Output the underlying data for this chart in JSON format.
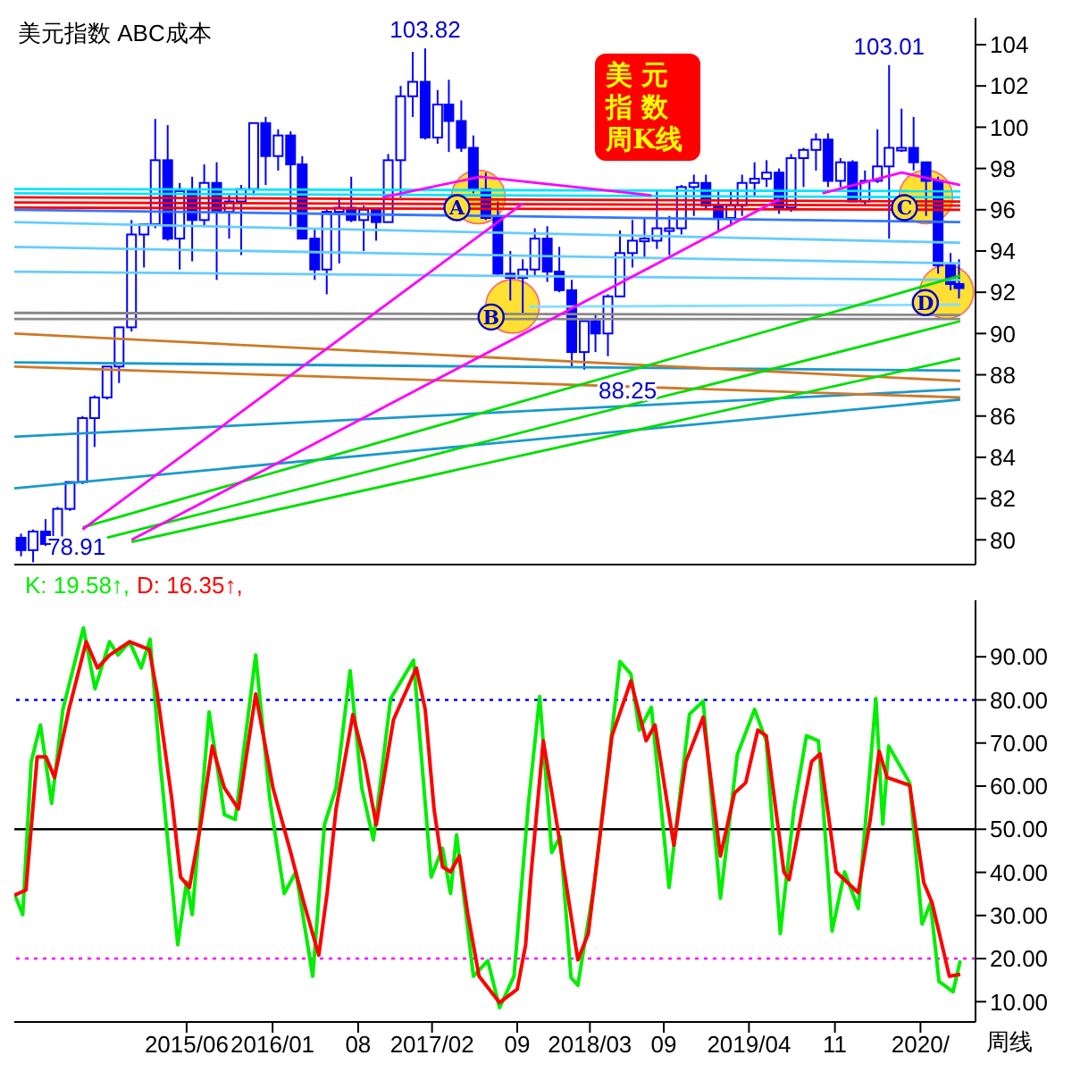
{
  "chart_data": [
    {
      "type": "candlestick",
      "title": "美元指数 ABC成本",
      "color": "#0000ff",
      "marker": "none",
      "line_style": "solid",
      "x": [
        "2014-04-15",
        "2014-05-15",
        "2014-06-15",
        "2014-07-15",
        "2014-08-15",
        "2014-09-15",
        "2014-10-15",
        "2014-11-15",
        "2014-12-15",
        "2015-01-15",
        "2015-02-15",
        "2015-03-15",
        "2015-04-15",
        "2015-05-15",
        "2015-06-15",
        "2015-07-15",
        "2015-08-15",
        "2015-09-15",
        "2015-10-15",
        "2015-11-15",
        "2015-12-15",
        "2016-01-15",
        "2016-02-15",
        "2016-03-15",
        "2016-04-15",
        "2016-05-15",
        "2016-06-15",
        "2016-07-15",
        "2016-08-15",
        "2016-09-15",
        "2016-10-15",
        "2016-11-15",
        "2016-12-15",
        "2017-01-15",
        "2017-02-15",
        "2017-03-15",
        "2017-04-15",
        "2017-05-15",
        "2017-06-15",
        "2017-07-15",
        "2017-08-15",
        "2017-09-15",
        "2017-10-15",
        "2017-11-15",
        "2017-12-15",
        "2018-01-15",
        "2018-02-15",
        "2018-03-15",
        "2018-04-15",
        "2018-05-15",
        "2018-06-15",
        "2018-07-15",
        "2018-08-15",
        "2018-09-15",
        "2018-10-15",
        "2018-11-15",
        "2018-12-15",
        "2019-01-15",
        "2019-02-15",
        "2019-03-15",
        "2019-04-15",
        "2019-05-15",
        "2019-06-15",
        "2019-07-15",
        "2019-08-15",
        "2019-09-15",
        "2019-10-15",
        "2019-11-15",
        "2019-12-15",
        "2020-01-15",
        "2020-02-15",
        "2020-03-15",
        "2020-04-15",
        "2020-05-15",
        "2020-06-15",
        "2020-07-15",
        "2020-08-15",
        "2020-09-05"
      ],
      "ohlc": [
        [
          80.1,
          80.3,
          79.2,
          79.5
        ],
        [
          79.5,
          80.5,
          78.91,
          80.4
        ],
        [
          80.4,
          81.0,
          79.7,
          79.8
        ],
        [
          79.8,
          81.6,
          79.8,
          81.5
        ],
        [
          81.5,
          82.8,
          81.4,
          82.8
        ],
        [
          82.8,
          86.0,
          82.7,
          85.9
        ],
        [
          85.9,
          87.0,
          84.5,
          86.9
        ],
        [
          86.9,
          88.4,
          86.8,
          88.4
        ],
        [
          88.4,
          90.3,
          87.6,
          90.3
        ],
        [
          90.3,
          95.5,
          90.1,
          94.8
        ],
        [
          94.8,
          95.3,
          93.2,
          95.3
        ],
        [
          95.3,
          100.4,
          95.1,
          98.4
        ],
        [
          98.4,
          100.1,
          94.5,
          94.6
        ],
        [
          94.6,
          97.3,
          93.1,
          96.9
        ],
        [
          96.9,
          97.6,
          93.5,
          95.5
        ],
        [
          95.5,
          98.2,
          95.2,
          97.3
        ],
        [
          97.3,
          98.3,
          92.6,
          95.9
        ],
        [
          95.9,
          96.8,
          94.6,
          96.4
        ],
        [
          96.4,
          97.2,
          93.8,
          97.0
        ],
        [
          97.0,
          100.2,
          96.7,
          100.2
        ],
        [
          100.2,
          100.5,
          97.2,
          98.6
        ],
        [
          98.6,
          99.9,
          97.9,
          99.6
        ],
        [
          99.6,
          99.8,
          95.2,
          98.2
        ],
        [
          98.2,
          98.6,
          94.6,
          94.6
        ],
        [
          94.6,
          95.1,
          92.6,
          93.1
        ],
        [
          93.1,
          96.0,
          91.9,
          95.9
        ],
        [
          95.9,
          96.6,
          93.4,
          96.1
        ],
        [
          96.1,
          97.6,
          95.4,
          95.5
        ],
        [
          95.5,
          96.2,
          94.0,
          96.0
        ],
        [
          96.0,
          96.0,
          94.5,
          95.4
        ],
        [
          95.4,
          98.7,
          95.4,
          98.4
        ],
        [
          98.4,
          102.0,
          96.6,
          101.5
        ],
        [
          101.5,
          103.65,
          100.5,
          102.2
        ],
        [
          102.2,
          103.82,
          99.4,
          99.5
        ],
        [
          99.5,
          101.8,
          99.2,
          101.1
        ],
        [
          101.1,
          102.3,
          98.8,
          100.3
        ],
        [
          100.3,
          101.3,
          98.8,
          99.0
        ],
        [
          99.0,
          99.6,
          96.8,
          97.0
        ],
        [
          97.0,
          97.8,
          95.5,
          95.6
        ],
        [
          95.6,
          96.4,
          92.8,
          92.9
        ],
        [
          92.9,
          94.0,
          91.6,
          92.7
        ],
        [
          92.7,
          93.6,
          91.0,
          93.1
        ],
        [
          93.1,
          95.1,
          92.8,
          94.6
        ],
        [
          94.6,
          95.2,
          92.5,
          93.0
        ],
        [
          93.0,
          94.2,
          92.0,
          92.1
        ],
        [
          92.1,
          92.6,
          88.4,
          89.1
        ],
        [
          89.1,
          90.6,
          88.25,
          90.6
        ],
        [
          90.6,
          90.9,
          89.1,
          90.0
        ],
        [
          90.0,
          91.9,
          88.9,
          91.8
        ],
        [
          91.8,
          95.0,
          91.8,
          93.9
        ],
        [
          93.9,
          95.5,
          93.2,
          94.5
        ],
        [
          94.5,
          95.6,
          93.7,
          94.6
        ],
        [
          94.5,
          96.9,
          94.1,
          95.1
        ],
        [
          95.1,
          95.7,
          93.8,
          95.1
        ],
        [
          95.1,
          97.2,
          94.8,
          97.1
        ],
        [
          97.1,
          97.7,
          95.7,
          97.3
        ],
        [
          97.3,
          97.7,
          96.0,
          96.2
        ],
        [
          96.2,
          96.9,
          95.0,
          95.6
        ],
        [
          95.6,
          96.9,
          95.2,
          96.2
        ],
        [
          96.2,
          97.7,
          95.7,
          97.3
        ],
        [
          97.3,
          98.3,
          96.6,
          97.5
        ],
        [
          97.5,
          98.4,
          97.1,
          97.8
        ],
        [
          97.8,
          98.0,
          95.8,
          96.1
        ],
        [
          96.1,
          98.7,
          95.9,
          98.5
        ],
        [
          98.5,
          99.0,
          97.1,
          98.9
        ],
        [
          98.9,
          99.7,
          97.9,
          99.4
        ],
        [
          99.4,
          99.7,
          97.1,
          97.4
        ],
        [
          97.4,
          98.5,
          97.1,
          98.3
        ],
        [
          98.3,
          98.4,
          96.4,
          96.4
        ],
        [
          96.4,
          97.9,
          96.2,
          97.4
        ],
        [
          97.4,
          99.9,
          97.3,
          98.1
        ],
        [
          98.1,
          103.01,
          94.6,
          99.0
        ],
        [
          99.0,
          100.9,
          98.8,
          99.0
        ],
        [
          99.0,
          100.5,
          97.9,
          98.3
        ],
        [
          98.3,
          98.3,
          95.7,
          97.4
        ],
        [
          97.4,
          97.6,
          92.9,
          93.3
        ],
        [
          93.3,
          93.9,
          92.1,
          92.4
        ],
        [
          92.4,
          93.6,
          91.7,
          92.2
        ]
      ],
      "series": [
        {
          "type": "line",
          "color": "#ff0000",
          "x": [
            "2014-03-29",
            "2020-09-08"
          ],
          "values": [
            96.6,
            96.4
          ]
        },
        {
          "type": "line",
          "color": "#ff0000",
          "x": [
            "2014-03-29",
            "2020-09-08"
          ],
          "values": [
            96.35,
            96.2
          ]
        },
        {
          "type": "line",
          "color": "#ff0000",
          "x": [
            "2014-03-29",
            "2020-09-08"
          ],
          "values": [
            96.1,
            96.0
          ]
        },
        {
          "type": "line",
          "color": "#00e5ff",
          "x": [
            "2014-03-29",
            "2020-09-08"
          ],
          "values": [
            97.0,
            96.9
          ]
        },
        {
          "type": "line",
          "color": "#00e5ff",
          "x": [
            "2014-03-29",
            "2020-09-08"
          ],
          "values": [
            96.8,
            96.6
          ]
        },
        {
          "type": "line",
          "color": "#3377ff",
          "x": [
            "2014-03-29",
            "2020-09-08"
          ],
          "values": [
            96.0,
            95.4
          ]
        },
        {
          "type": "line",
          "color": "#888888",
          "x": [
            "2014-03-29",
            "2020-09-08"
          ],
          "values": [
            91.0,
            90.9
          ]
        },
        {
          "type": "line",
          "color": "#888888",
          "x": [
            "2014-03-29",
            "2020-09-08"
          ],
          "values": [
            90.7,
            90.7
          ]
        },
        {
          "type": "line",
          "color": "#88ddff",
          "x": [
            "2017-10-01",
            "2020-09-08"
          ],
          "values": [
            91.3,
            91.4
          ]
        },
        {
          "type": "line",
          "color": "#66ccff",
          "x": [
            "2014-03-29",
            "2020-09-08"
          ],
          "values": [
            95.4,
            94.4
          ]
        },
        {
          "type": "line",
          "color": "#66ccff",
          "x": [
            "2014-03-29",
            "2020-09-08"
          ],
          "values": [
            94.2,
            93.4
          ]
        },
        {
          "type": "line",
          "color": "#66ccff",
          "x": [
            "2014-03-29",
            "2020-09-08"
          ],
          "values": [
            93.0,
            92.6
          ]
        },
        {
          "type": "line",
          "color": "#1a99cc",
          "x": [
            "2014-03-29",
            "2020-09-08"
          ],
          "values": [
            88.6,
            88.2
          ]
        },
        {
          "type": "line",
          "color": "#1a99cc",
          "x": [
            "2014-03-29",
            "2020-09-08"
          ],
          "values": [
            85.0,
            87.3
          ]
        },
        {
          "type": "line",
          "color": "#1a99cc",
          "x": [
            "2014-03-29",
            "2020-09-08"
          ],
          "values": [
            82.5,
            86.8
          ]
        },
        {
          "type": "line",
          "color": "#cc7a29",
          "x": [
            "2014-03-29",
            "2020-09-08"
          ],
          "values": [
            90.0,
            87.7
          ]
        },
        {
          "type": "line",
          "color": "#cc7a29",
          "x": [
            "2014-03-29",
            "2020-09-08"
          ],
          "values": [
            88.4,
            86.9
          ]
        },
        {
          "type": "line",
          "color": "#00dd00",
          "x": [
            "2014-09-15",
            "2020-09-08"
          ],
          "values": [
            80.6,
            92.8
          ]
        },
        {
          "type": "line",
          "color": "#00dd00",
          "x": [
            "2014-11-15",
            "2020-09-08"
          ],
          "values": [
            80.1,
            90.6
          ]
        },
        {
          "type": "line",
          "color": "#00dd00",
          "x": [
            "2015-01-15",
            "2020-09-08"
          ],
          "values": [
            79.9,
            88.8
          ]
        },
        {
          "type": "line",
          "color": "#ff00ff",
          "x": [
            "2014-09-15",
            "2017-09-15"
          ],
          "values": [
            80.5,
            96.3
          ]
        },
        {
          "type": "line",
          "color": "#ff00ff",
          "x": [
            "2015-01-15",
            "2019-06-15"
          ],
          "values": [
            80.0,
            96.5
          ]
        },
        {
          "type": "line",
          "color": "#ff00ff",
          "x": [
            "2016-10-01",
            "2017-06-01",
            "2018-08-01"
          ],
          "values": [
            96.6,
            97.6,
            96.7
          ]
        },
        {
          "type": "line",
          "color": "#ff00ff",
          "x": [
            "2019-10-01",
            "2020-04-15",
            "2020-09-08"
          ],
          "values": [
            96.8,
            97.8,
            97.2
          ]
        }
      ],
      "xlim": [
        "2014-03-29",
        "2020-10-16"
      ],
      "ylim": [
        78.8,
        105.3
      ],
      "yticks": [
        80,
        82,
        84,
        86,
        88,
        90,
        92,
        94,
        96,
        98,
        100,
        102,
        104
      ],
      "tick_labels": "y",
      "annotations": [
        {
          "text": "103.82",
          "x": "2017-01-15",
          "y": 103.82
        },
        {
          "text": "103.01",
          "x": "2020-03-15",
          "y": 103.01
        },
        {
          "text": "88.25",
          "x": "2018-02-15",
          "y": 88.25
        },
        {
          "text": "78.91",
          "x": "2014-05-15",
          "y": 78.91
        },
        {
          "text": "A",
          "x": "2017-04-04",
          "y": 96.1
        },
        {
          "text": "B",
          "x": "2017-06-28",
          "y": 90.8
        },
        {
          "text": "C",
          "x": "2020-04-22",
          "y": 96.1
        },
        {
          "text": "D",
          "x": "2020-06-13",
          "y": 91.5
        },
        "美 元指 数周K线"
      ]
    },
    {
      "type": "line",
      "xlabel": "周线",
      "legend": "top left",
      "marker": "none",
      "line_style": "solid",
      "series": [
        {
          "name": "K: 19.58↑,",
          "color": "#00ee00",
          "x": [
            "2014-03-29",
            "2014-04-19",
            "2014-05-10",
            "2014-06-02",
            "2014-06-30",
            "2014-07-28",
            "2014-09-17",
            "2014-10-16",
            "2014-11-21",
            "2014-12-12",
            "2015-01-10",
            "2015-02-08",
            "2015-03-02",
            "2015-03-27",
            "2015-05-10",
            "2015-06-01",
            "2015-06-15",
            "2015-07-27",
            "2015-09-03",
            "2015-09-30",
            "2015-11-20",
            "2015-12-25",
            "2016-01-30",
            "2016-02-28",
            "2016-04-10",
            "2016-05-09",
            "2016-06-07",
            "2016-07-12",
            "2016-08-10",
            "2016-09-08",
            "2016-10-21",
            "2016-12-17",
            "2017-01-30",
            "2017-02-27",
            "2017-03-19",
            "2017-04-03",
            "2017-05-15",
            "2017-06-20",
            "2017-07-19",
            "2017-08-24",
            "2017-09-29",
            "2017-10-27",
            "2017-11-26",
            "2017-12-17",
            "2018-01-13",
            "2018-01-30",
            "2018-03-12",
            "2018-05-15",
            "2018-06-11",
            "2018-07-02",
            "2018-08-01",
            "2018-09-14",
            "2018-11-04",
            "2018-12-08",
            "2019-01-20",
            "2019-03-03",
            "2019-04-15",
            "2019-05-14",
            "2019-06-18",
            "2019-07-22",
            "2019-08-22",
            "2019-09-21",
            "2019-10-25",
            "2019-11-25",
            "2019-12-29",
            "2020-02-11",
            "2020-02-28",
            "2020-03-14",
            "2020-05-05",
            "2020-06-05",
            "2020-06-26",
            "2020-07-17",
            "2020-08-21",
            "2020-09-08"
          ],
          "values": [
            35.1,
            30.2,
            65.6,
            74.2,
            56,
            77.8,
            96.7,
            82.6,
            93.5,
            90.4,
            93.5,
            87.4,
            94.1,
            65.6,
            23.2,
            37.8,
            30.2,
            77.2,
            53.4,
            52.3,
            90.4,
            57.1,
            35.1,
            40.1,
            15.9,
            51,
            59.6,
            86.8,
            59.6,
            47.5,
            80.3,
            89.2,
            38.9,
            45.6,
            35.1,
            48.7,
            15.9,
            19.5,
            8.6,
            15.9,
            56,
            80.8,
            44.6,
            48.3,
            15.6,
            13.8,
            37.3,
            88.9,
            86,
            73,
            78.3,
            36.5,
            76.7,
            79.7,
            34,
            67.3,
            77.8,
            70.5,
            25.8,
            54.7,
            71.7,
            70.5,
            26.4,
            40.1,
            31.6,
            80.3,
            51.2,
            69.3,
            60.8,
            28,
            32.9,
            14.7,
            12.3,
            19.58
          ]
        },
        {
          "name": "D: 16.35↑,",
          "color": "#ff0000",
          "x": [
            "2014-03-29",
            "2014-04-27",
            "2014-05-25",
            "2014-06-16",
            "2014-07-07",
            "2014-08-12",
            "2014-09-24",
            "2014-10-22",
            "2014-11-21",
            "2015-01-10",
            "2015-02-28",
            "2015-03-20",
            "2015-04-25",
            "2015-05-17",
            "2015-06-08",
            "2015-07-06",
            "2015-08-04",
            "2015-09-03",
            "2015-10-08",
            "2015-11-20",
            "2016-01-02",
            "2016-02-14",
            "2016-03-19",
            "2016-04-25",
            "2016-05-16",
            "2016-06-07",
            "2016-07-19",
            "2016-08-17",
            "2016-09-15",
            "2016-10-28",
            "2016-12-24",
            "2017-01-15",
            "2017-02-06",
            "2017-02-27",
            "2017-03-19",
            "2017-04-10",
            "2017-05-01",
            "2017-05-29",
            "2017-07-19",
            "2017-09-01",
            "2017-09-22",
            "2017-10-06",
            "2017-11-05",
            "2017-12-09",
            "2018-01-30",
            "2018-02-25",
            "2018-04-25",
            "2018-06-11",
            "2018-07-19",
            "2018-08-10",
            "2018-09-26",
            "2018-10-26",
            "2018-12-08",
            "2019-01-20",
            "2019-02-24",
            "2019-03-24",
            "2019-04-23",
            "2019-05-14",
            "2019-06-27",
            "2019-07-10",
            "2019-09-04",
            "2019-09-25",
            "2019-11-04",
            "2019-12-29",
            "2020-01-28",
            "2020-02-19",
            "2020-03-10",
            "2020-05-05",
            "2020-06-09",
            "2020-06-30",
            "2020-08-12",
            "2020-09-08"
          ],
          "values": [
            34.7,
            35.9,
            66.8,
            66.8,
            62,
            77.8,
            93.5,
            87.4,
            90.4,
            93.5,
            91.7,
            81.4,
            57.1,
            38.9,
            36.5,
            51,
            69.3,
            59.6,
            54.7,
            81.4,
            59.6,
            45,
            32.9,
            20.8,
            35.3,
            54.7,
            76.6,
            65.7,
            51,
            75.4,
            87.4,
            77.8,
            54.7,
            41.3,
            40.1,
            43.8,
            30.4,
            15.9,
            9.8,
            12.9,
            23.2,
            40.1,
            70.5,
            51.2,
            19.7,
            25.8,
            71.7,
            84.4,
            70.5,
            74.2,
            46.3,
            65.7,
            76,
            43.8,
            58.4,
            60.8,
            73,
            71.7,
            40.1,
            38.3,
            65.7,
            67.5,
            40.1,
            35.3,
            52.3,
            68.1,
            62,
            60.2,
            37.7,
            32.9,
            15.9,
            16.35
          ]
        }
      ],
      "xlim": [
        "2014-03-29",
        "2020-10-16"
      ],
      "xticks": [
        {
          "value": "2015-06",
          "label": "2015/06"
        },
        {
          "value": "2016-01",
          "label": "2016/01"
        },
        {
          "value": "2016-08",
          "label": "08"
        },
        {
          "value": "2017-02",
          "label": "2017/02"
        },
        {
          "value": "2017-09",
          "label": "09"
        },
        {
          "value": "2018-03",
          "label": "2018/03"
        },
        {
          "value": "2018-09",
          "label": "09"
        },
        {
          "value": "2019-04",
          "label": "2019/04"
        },
        {
          "value": "2019-11",
          "label": "11"
        },
        {
          "value": "2020-06",
          "label": "2020/"
        }
      ],
      "ylim": [
        5.3,
        103.1
      ],
      "yticks": [
        {
          "value": 10,
          "label": "10.00"
        },
        {
          "value": 20,
          "label": "20.00"
        },
        {
          "value": 30,
          "label": "30.00"
        },
        {
          "value": 40,
          "label": "40.00"
        },
        {
          "value": 50,
          "label": "50.00"
        },
        {
          "value": 60,
          "label": "60.00"
        },
        {
          "value": 70,
          "label": "70.00"
        },
        {
          "value": 80,
          "label": "80.00"
        },
        {
          "value": 90,
          "label": "90.00"
        }
      ],
      "ref_lines": [
        {
          "axis": "y",
          "value": 80,
          "color": "#0000ff",
          "line_style": "dotted"
        },
        {
          "axis": "y",
          "value": 50,
          "color": "#000000",
          "line_style": "solid"
        },
        {
          "axis": "y",
          "value": 20,
          "color": "#ff00ff",
          "line_style": "dotted"
        }
      ]
    }
  ]
}
